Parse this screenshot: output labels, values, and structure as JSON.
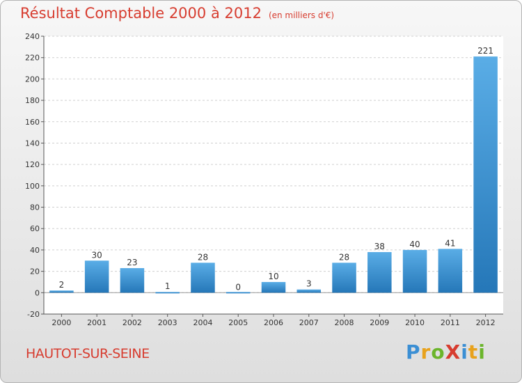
{
  "header": {
    "title": "Résultat Comptable 2000 à 2012",
    "subtitle": "(en milliers d'€)"
  },
  "commune": "HAUTOT-SUR-SEINE",
  "logo": {
    "text": "Proxiti",
    "letters": [
      {
        "ch": "P",
        "color": "#3b8fd4"
      },
      {
        "ch": "r",
        "color": "#e8a21c"
      },
      {
        "ch": "o",
        "color": "#6bb52b"
      },
      {
        "ch": "X",
        "color": "#d73c2f"
      },
      {
        "ch": "i",
        "color": "#3b8fd4"
      },
      {
        "ch": "t",
        "color": "#e8a21c"
      },
      {
        "ch": "i",
        "color": "#6bb52b"
      }
    ]
  },
  "colors": {
    "bar_light": "#5aade6",
    "bar_dark": "#2577b8",
    "title": "#d73c2f"
  },
  "chart_data": {
    "type": "bar",
    "title": "Résultat Comptable 2000 à 2012",
    "subtitle": "(en milliers d'€)",
    "categories": [
      "2000",
      "2001",
      "2002",
      "2003",
      "2004",
      "2005",
      "2006",
      "2007",
      "2008",
      "2009",
      "2010",
      "2011",
      "2012"
    ],
    "values": [
      2,
      30,
      23,
      1,
      28,
      0,
      10,
      3,
      28,
      38,
      40,
      41,
      221
    ],
    "ylim": [
      -20,
      240
    ],
    "yticks": [
      -20,
      0,
      20,
      40,
      60,
      80,
      100,
      120,
      140,
      160,
      180,
      200,
      220,
      240
    ],
    "grid": true,
    "xlabel": "",
    "ylabel": ""
  }
}
